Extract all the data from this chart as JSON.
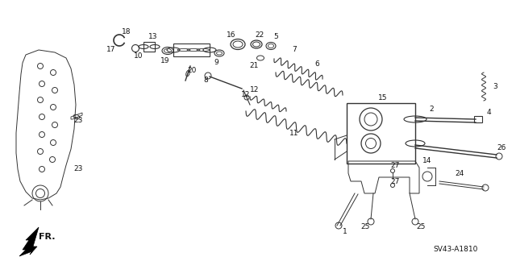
{
  "bg_color": "#ffffff",
  "diagram_code": "SV43-A1810",
  "fr_label": "FR.",
  "line_color": "#333333",
  "label_color": "#111111",
  "font_size": 6.5
}
